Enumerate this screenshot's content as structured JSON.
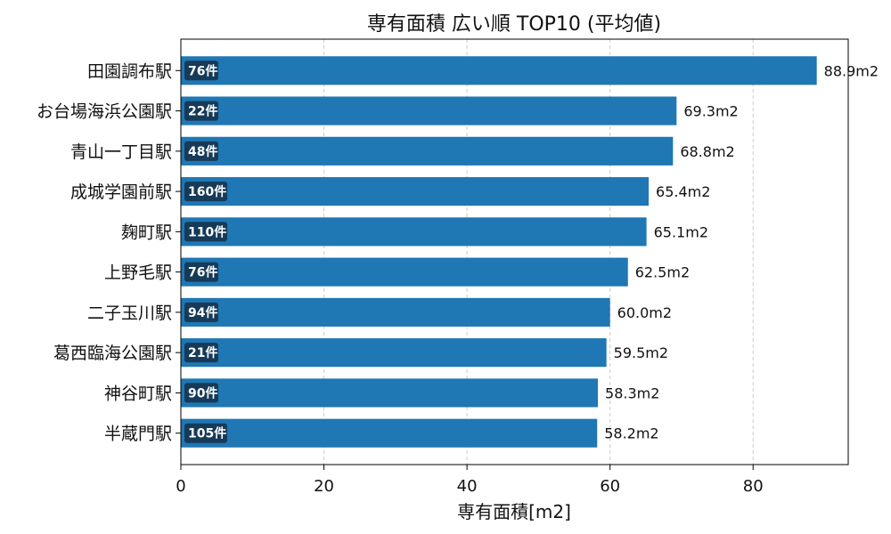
{
  "chart_data": {
    "type": "bar",
    "orientation": "horizontal",
    "title": "専有面積 広い順 TOP10 (平均値)",
    "xlabel": "専有面積[m2]",
    "ylabel": "",
    "xlim": [
      0,
      93.3
    ],
    "x_ticks": [
      "0",
      "20",
      "40",
      "60",
      "80"
    ],
    "grid": "vertical dashed",
    "bar_color": "#1f77b4",
    "count_badge_color": "#163a58",
    "categories": [
      "田園調布駅",
      "お台場海浜公園駅",
      "青山一丁目駅",
      "成城学園前駅",
      "麹町駅",
      "上野毛駅",
      "二子玉川駅",
      "葛西臨海公園駅",
      "神谷町駅",
      "半蔵門駅"
    ],
    "values": [
      88.9,
      69.3,
      68.8,
      65.4,
      65.1,
      62.5,
      60.0,
      59.5,
      58.3,
      58.2
    ],
    "value_labels": [
      "88.9m2",
      "69.3m2",
      "68.8m2",
      "65.4m2",
      "65.1m2",
      "62.5m2",
      "60.0m2",
      "59.5m2",
      "58.3m2",
      "58.2m2"
    ],
    "counts": [
      "76件",
      "22件",
      "48件",
      "160件",
      "110件",
      "76件",
      "94件",
      "21件",
      "90件",
      "105件"
    ]
  }
}
